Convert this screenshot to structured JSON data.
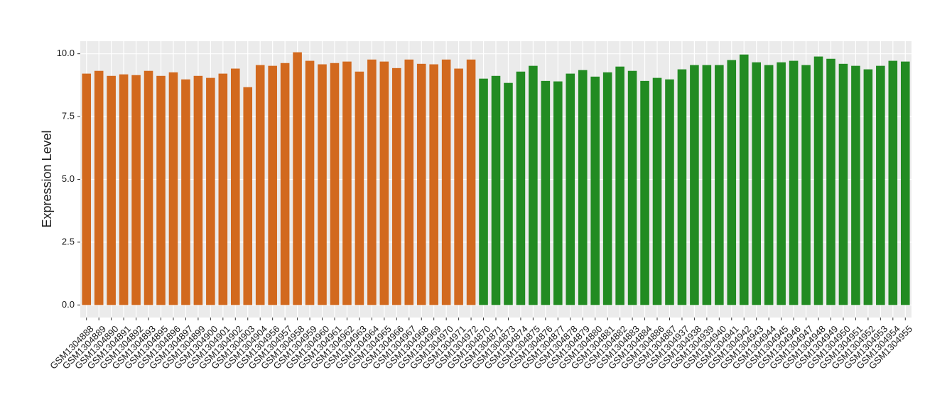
{
  "chart_data": {
    "type": "bar",
    "y_label": "Expression Level",
    "categories": [
      "GSM1304888",
      "GSM1304889",
      "GSM1304890",
      "GSM1304891",
      "GSM1304892",
      "GSM1304893",
      "GSM1304895",
      "GSM1304896",
      "GSM1304897",
      "GSM1304899",
      "GSM1304900",
      "GSM1304901",
      "GSM1304902",
      "GSM1304903",
      "GSM1304904",
      "GSM1304956",
      "GSM1304957",
      "GSM1304958",
      "GSM1304959",
      "GSM1304960",
      "GSM1304961",
      "GSM1304962",
      "GSM1304963",
      "GSM1304964",
      "GSM1304965",
      "GSM1304966",
      "GSM1304967",
      "GSM1304968",
      "GSM1304969",
      "GSM1304970",
      "GSM1304971",
      "GSM1304972",
      "GSM1304870",
      "GSM1304871",
      "GSM1304873",
      "GSM1304874",
      "GSM1304875",
      "GSM1304876",
      "GSM1304877",
      "GSM1304878",
      "GSM1304879",
      "GSM1304880",
      "GSM1304881",
      "GSM1304882",
      "GSM1304883",
      "GSM1304884",
      "GSM1304886",
      "GSM1304887",
      "GSM1304937",
      "GSM1304938",
      "GSM1304939",
      "GSM1304940",
      "GSM1304941",
      "GSM1304942",
      "GSM1304943",
      "GSM1304944",
      "GSM1304945",
      "GSM1304946",
      "GSM1304947",
      "GSM1304948",
      "GSM1304949",
      "GSM1304950",
      "GSM1304951",
      "GSM1304952",
      "GSM1304953",
      "GSM1304954",
      "GSM1304955"
    ],
    "values": [
      9.21,
      9.32,
      9.12,
      9.18,
      9.15,
      9.32,
      9.12,
      9.26,
      8.98,
      9.12,
      9.04,
      9.21,
      9.41,
      8.67,
      9.55,
      9.52,
      9.63,
      10.06,
      9.72,
      9.58,
      9.63,
      9.69,
      9.29,
      9.77,
      9.69,
      9.43,
      9.77,
      9.6,
      9.58,
      9.77,
      9.41,
      9.77,
      9.01,
      9.12,
      8.84,
      9.29,
      9.52,
      8.92,
      8.9,
      9.21,
      9.35,
      9.09,
      9.26,
      9.49,
      9.32,
      8.92,
      9.04,
      8.98,
      9.38,
      9.55,
      9.55,
      9.55,
      9.75,
      9.97,
      9.66,
      9.55,
      9.66,
      9.72,
      9.55,
      9.89,
      9.8,
      9.6,
      9.52,
      9.38,
      9.52,
      9.72,
      9.69
    ],
    "colors": [
      "#d2691e",
      "#d2691e",
      "#d2691e",
      "#d2691e",
      "#d2691e",
      "#d2691e",
      "#d2691e",
      "#d2691e",
      "#d2691e",
      "#d2691e",
      "#d2691e",
      "#d2691e",
      "#d2691e",
      "#d2691e",
      "#d2691e",
      "#d2691e",
      "#d2691e",
      "#d2691e",
      "#d2691e",
      "#d2691e",
      "#d2691e",
      "#d2691e",
      "#d2691e",
      "#d2691e",
      "#d2691e",
      "#d2691e",
      "#d2691e",
      "#d2691e",
      "#d2691e",
      "#d2691e",
      "#d2691e",
      "#d2691e",
      "#228b22",
      "#228b22",
      "#228b22",
      "#228b22",
      "#228b22",
      "#228b22",
      "#228b22",
      "#228b22",
      "#228b22",
      "#228b22",
      "#228b22",
      "#228b22",
      "#228b22",
      "#228b22",
      "#228b22",
      "#228b22",
      "#228b22",
      "#228b22",
      "#228b22",
      "#228b22",
      "#228b22",
      "#228b22",
      "#228b22",
      "#228b22",
      "#228b22",
      "#228b22",
      "#228b22",
      "#228b22",
      "#228b22",
      "#228b22",
      "#228b22",
      "#228b22",
      "#228b22",
      "#228b22",
      "#228b22"
    ],
    "ylim": [
      -0.5,
      10.5
    ],
    "yticks": [
      {
        "value": 0,
        "label": "0.0"
      },
      {
        "value": 2.5,
        "label": "2.5"
      },
      {
        "value": 5,
        "label": "5.0"
      },
      {
        "value": 7.5,
        "label": "7.5"
      },
      {
        "value": 10,
        "label": "10.0"
      }
    ],
    "grid": true
  }
}
